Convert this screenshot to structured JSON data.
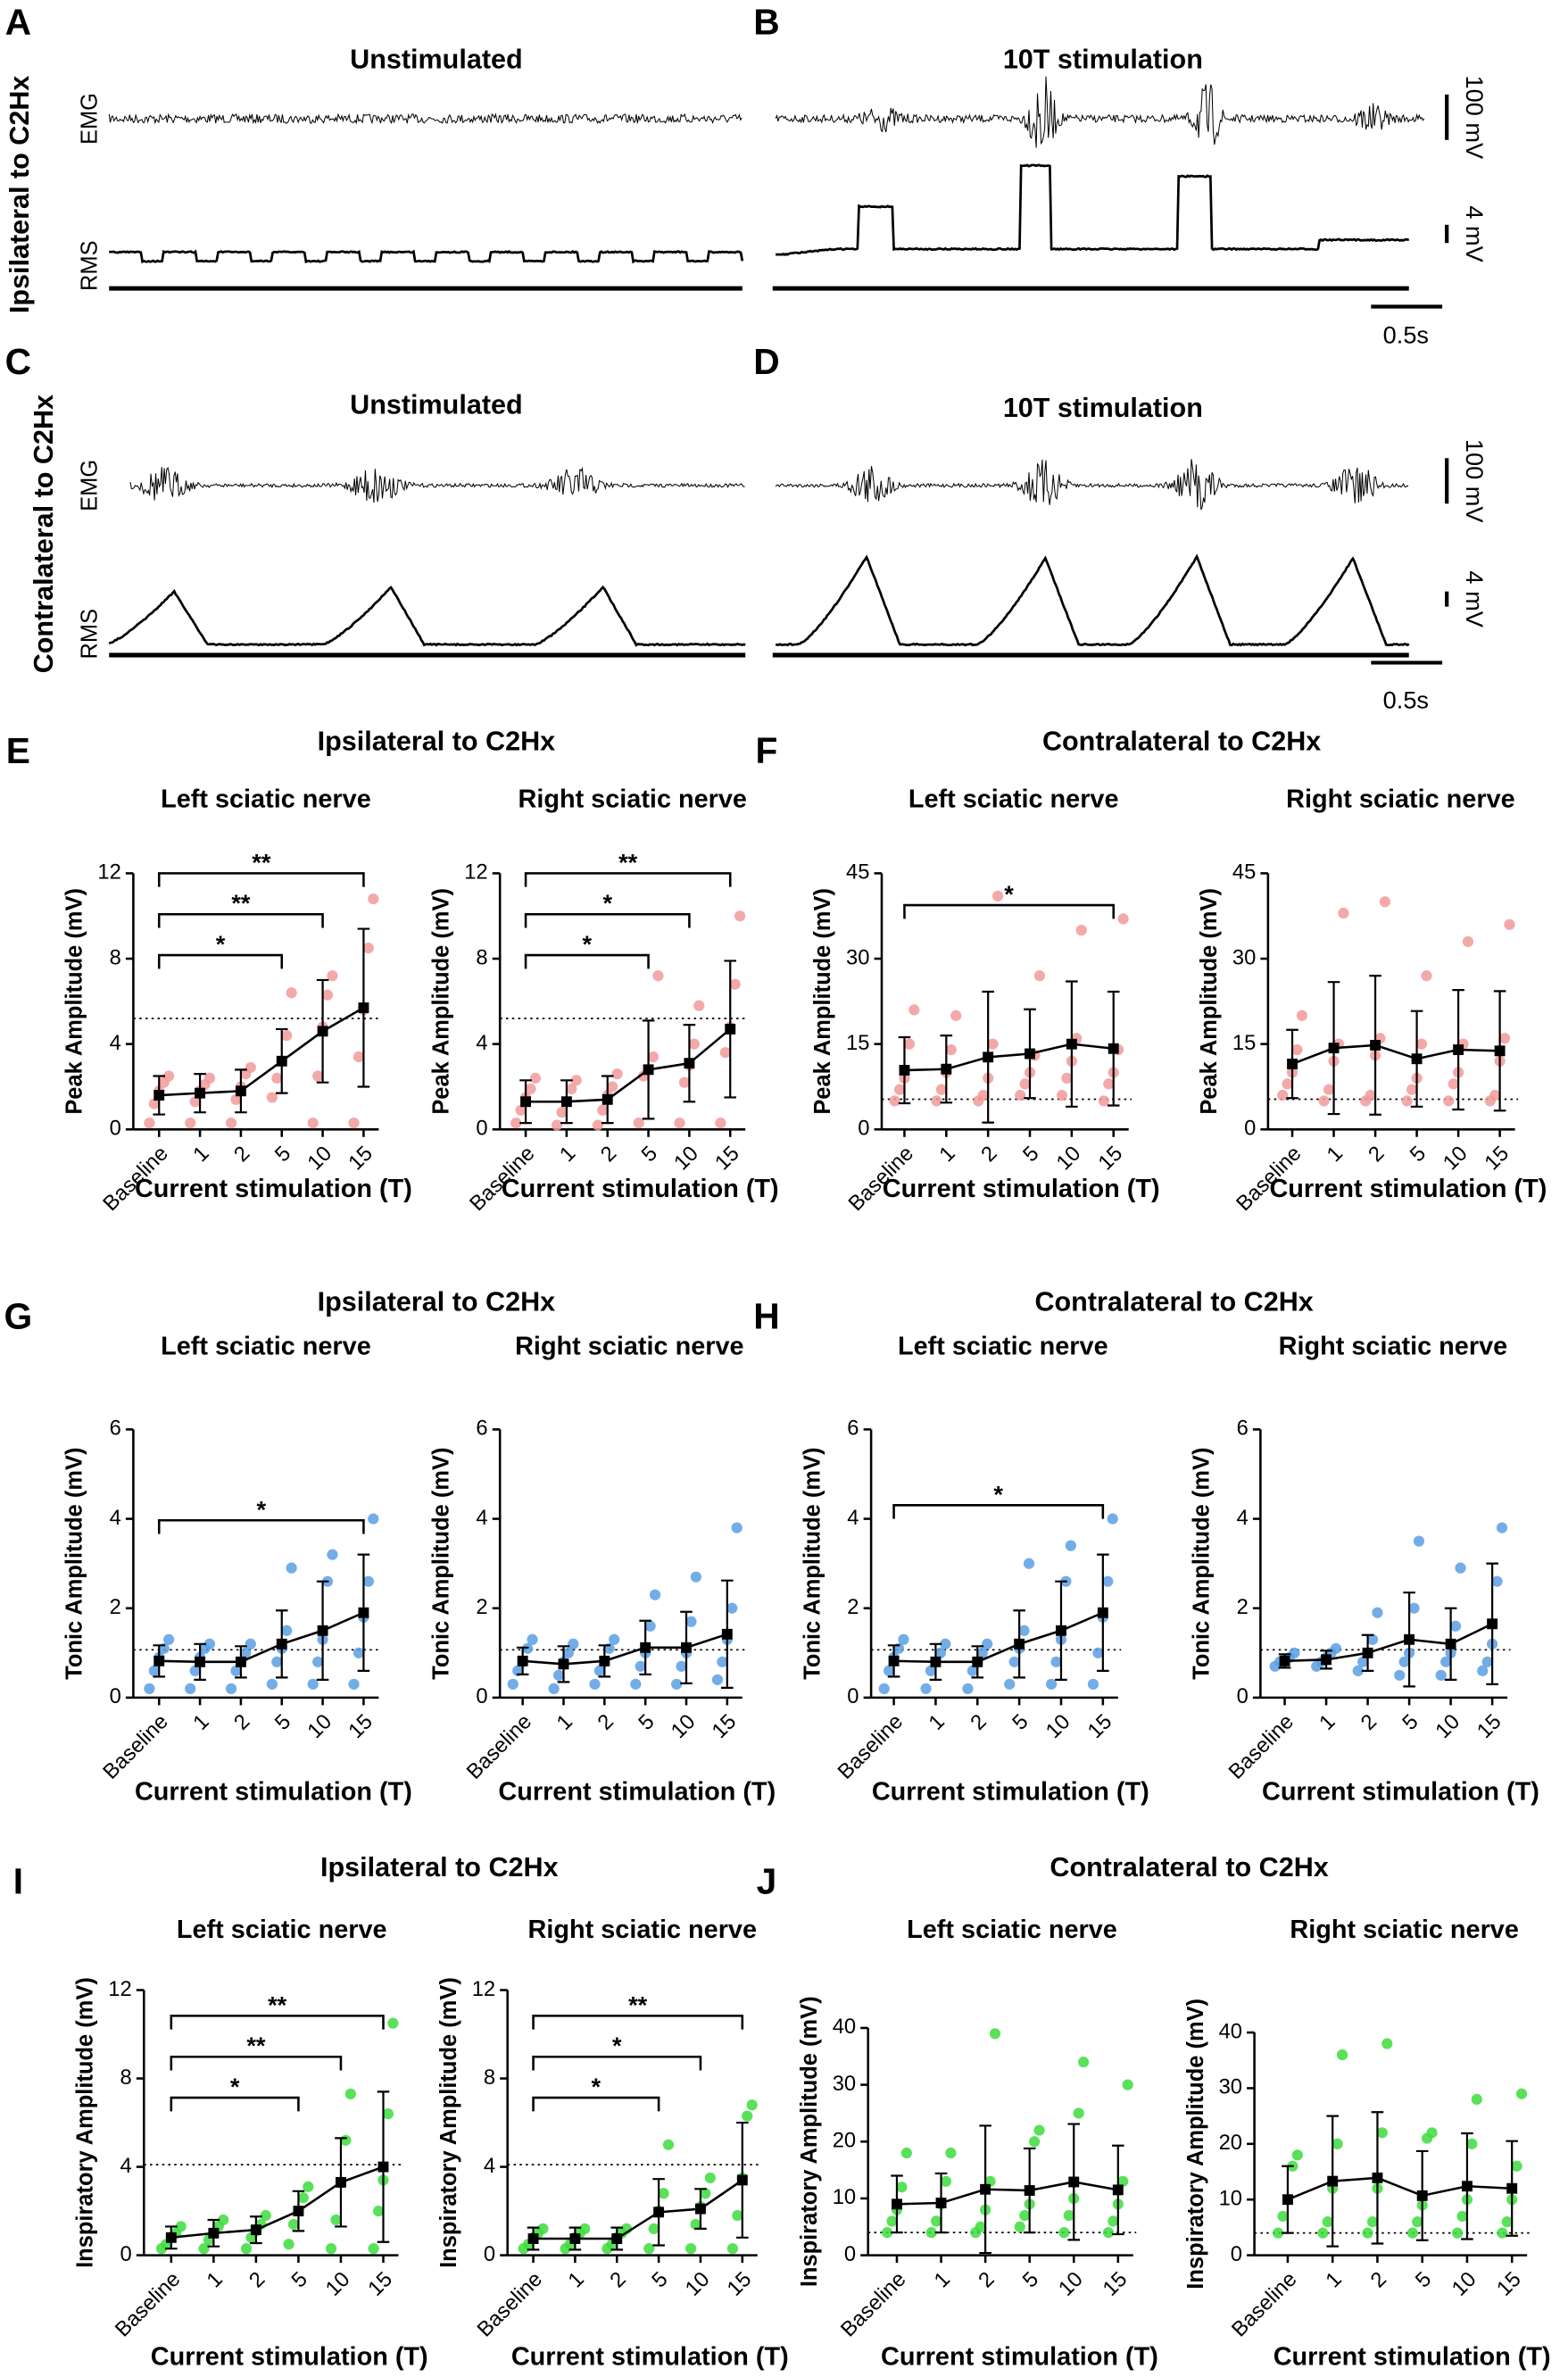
{
  "panel_letters": [
    "A",
    "B",
    "C",
    "D",
    "E",
    "F",
    "G",
    "H",
    "I",
    "J"
  ],
  "traces": {
    "titles": [
      "Unstimulated",
      "10T stimulation",
      "Unstimulated",
      "10T stimulation"
    ],
    "row_labels": [
      "Ipsilateral to C2Hx",
      "Contralateral to C2Hx"
    ],
    "channel_labels": [
      "EMG",
      "RMS"
    ],
    "scale_labels": [
      "100 mV",
      "4 mV",
      "0.5s"
    ]
  },
  "group_titles": [
    "Ipsilateral to C2Hx",
    "Contralateral to C2Hx",
    "Ipsilateral to C2Hx",
    "Contralateral to C2Hx",
    "Ipsilateral to C2Hx",
    "Contralateral to C2Hx"
  ],
  "chart_data": [
    {
      "type": "line",
      "title": "Left sciatic nerve",
      "xlabel": "Current stimulation (T)",
      "ylabel": "Peak Amplitude (mV)",
      "categories": [
        "Baseline",
        "1",
        "2",
        "5",
        "10",
        "15"
      ],
      "values": [
        1.6,
        1.7,
        1.8,
        3.2,
        4.6,
        5.7
      ],
      "errors": [
        0.9,
        0.9,
        1.0,
        1.5,
        2.4,
        3.7
      ],
      "points": [
        [
          0.3,
          1.2,
          1.8,
          2.2,
          2.5
        ],
        [
          0.3,
          1.3,
          1.8,
          2.1,
          2.4
        ],
        [
          0.3,
          1.4,
          2.0,
          2.6,
          2.9
        ],
        [
          1.5,
          2.4,
          3.2,
          4.4,
          6.4
        ],
        [
          0.3,
          2.5,
          4.8,
          6.3,
          7.2
        ],
        [
          0.3,
          3.4,
          5.6,
          8.5,
          10.8
        ]
      ],
      "threshold": 5.2,
      "ylim": [
        0,
        12
      ],
      "yticks": [
        0,
        4,
        8,
        12
      ],
      "brackets": [
        {
          "from": "Baseline",
          "to": "5",
          "label": "*"
        },
        {
          "from": "Baseline",
          "to": "10",
          "label": "**"
        },
        {
          "from": "Baseline",
          "to": "15",
          "label": "**"
        }
      ],
      "color": "#f29a9a"
    },
    {
      "type": "line",
      "title": "Right sciatic nerve",
      "xlabel": "Current stimulation (T)",
      "ylabel": "Peak Amplitude (mV)",
      "categories": [
        "Baseline",
        "1",
        "2",
        "5",
        "10",
        "15"
      ],
      "values": [
        1.3,
        1.3,
        1.4,
        2.8,
        3.1,
        4.7
      ],
      "errors": [
        1.0,
        1.0,
        1.1,
        2.3,
        1.8,
        3.2
      ],
      "points": [
        [
          0.3,
          0.9,
          1.5,
          1.9,
          2.4
        ],
        [
          0.2,
          0.8,
          1.3,
          1.9,
          2.3
        ],
        [
          0.2,
          0.9,
          1.6,
          2.0,
          2.6
        ],
        [
          0.3,
          2.5,
          2.8,
          3.4,
          7.2
        ],
        [
          0.3,
          2.2,
          3.0,
          4.0,
          5.8
        ],
        [
          0.3,
          3.6,
          4.8,
          6.8,
          10.0
        ]
      ],
      "threshold": 5.2,
      "ylim": [
        0,
        12
      ],
      "yticks": [
        0,
        4,
        8,
        12
      ],
      "brackets": [
        {
          "from": "Baseline",
          "to": "5",
          "label": "*"
        },
        {
          "from": "Baseline",
          "to": "10",
          "label": "*"
        },
        {
          "from": "Baseline",
          "to": "15",
          "label": "**"
        }
      ],
      "color": "#f29a9a"
    },
    {
      "type": "line",
      "title": "Left sciatic nerve",
      "xlabel": "Current stimulation (T)",
      "ylabel": "Peak Amplitude (mV)",
      "categories": [
        "Baseline",
        "1",
        "2",
        "5",
        "10",
        "15"
      ],
      "values": [
        10.4,
        10.6,
        12.7,
        13.3,
        15.0,
        14.2
      ],
      "errors": [
        5.8,
        5.9,
        11.5,
        7.8,
        11,
        10
      ],
      "points": [
        [
          5,
          7,
          9,
          15,
          21
        ],
        [
          5,
          7,
          10,
          14,
          20
        ],
        [
          5,
          6,
          9,
          15,
          41
        ],
        [
          6,
          8,
          10,
          13,
          27
        ],
        [
          6,
          9,
          12,
          16,
          35
        ],
        [
          5,
          8,
          10,
          14,
          37
        ]
      ],
      "threshold": 5.3,
      "ylim": [
        0,
        45
      ],
      "yticks": [
        0,
        15,
        30,
        45
      ],
      "brackets": [
        {
          "from": "Baseline",
          "to": "15",
          "label": "*"
        }
      ],
      "color": "#f29a9a"
    },
    {
      "type": "line",
      "title": "Right sciatic nerve",
      "xlabel": "Current stimulation (T)",
      "ylabel": "Peak Amplitude (mV)",
      "categories": [
        "Baseline",
        "1",
        "2",
        "5",
        "10",
        "15"
      ],
      "values": [
        11.5,
        14.3,
        14.8,
        12.4,
        14.0,
        13.8
      ],
      "errors": [
        6,
        11.6,
        12.2,
        8.4,
        10.5,
        10.5
      ],
      "points": [
        [
          6,
          8,
          10,
          14,
          20
        ],
        [
          5,
          7,
          12,
          15,
          38
        ],
        [
          5,
          6,
          13,
          16,
          40
        ],
        [
          5,
          7,
          9,
          15,
          27
        ],
        [
          5,
          8,
          10,
          15,
          33
        ],
        [
          5,
          6,
          12,
          16,
          36
        ]
      ],
      "threshold": 5.3,
      "ylim": [
        0,
        45
      ],
      "yticks": [
        0,
        15,
        30,
        45
      ],
      "brackets": [],
      "color": "#f29a9a"
    },
    {
      "type": "line",
      "title": "Left sciatic nerve",
      "xlabel": "Current stimulation (T)",
      "ylabel": "Tonic Amplitude (mV)",
      "categories": [
        "Baseline",
        "1",
        "2",
        "5",
        "10",
        "15"
      ],
      "values": [
        0.82,
        0.8,
        0.8,
        1.2,
        1.5,
        1.9
      ],
      "errors": [
        0.35,
        0.4,
        0.35,
        0.75,
        1.1,
        1.3
      ],
      "points": [
        [
          0.2,
          0.6,
          0.9,
          1.1,
          1.3
        ],
        [
          0.2,
          0.6,
          0.9,
          1.1,
          1.2
        ],
        [
          0.2,
          0.6,
          0.8,
          1.0,
          1.2
        ],
        [
          0.3,
          0.8,
          1.1,
          1.5,
          2.9
        ],
        [
          0.3,
          0.8,
          1.3,
          2.6,
          3.2
        ],
        [
          0.3,
          1.0,
          1.8,
          2.6,
          4.0
        ]
      ],
      "threshold": 1.07,
      "ylim": [
        0,
        6
      ],
      "yticks": [
        0,
        2,
        4,
        6
      ],
      "brackets": [
        {
          "from": "Baseline",
          "to": "15",
          "label": "*"
        }
      ],
      "color": "#5b9fe3"
    },
    {
      "type": "line",
      "title": "Right sciatic nerve",
      "xlabel": "Current stimulation (T)",
      "ylabel": "Tonic Amplitude (mV)",
      "categories": [
        "Baseline",
        "1",
        "2",
        "5",
        "10",
        "15"
      ],
      "values": [
        0.82,
        0.75,
        0.82,
        1.12,
        1.12,
        1.42
      ],
      "errors": [
        0.3,
        0.4,
        0.35,
        0.6,
        0.8,
        1.2
      ],
      "points": [
        [
          0.3,
          0.6,
          0.8,
          1.1,
          1.3
        ],
        [
          0.2,
          0.5,
          0.8,
          1.0,
          1.2
        ],
        [
          0.3,
          0.6,
          0.8,
          1.1,
          1.3
        ],
        [
          0.3,
          0.7,
          1.0,
          1.6,
          2.3
        ],
        [
          0.3,
          0.7,
          1.0,
          1.7,
          2.7
        ],
        [
          0.4,
          0.8,
          1.3,
          2.0,
          3.8
        ]
      ],
      "threshold": 1.07,
      "ylim": [
        0,
        6
      ],
      "yticks": [
        0,
        2,
        4,
        6
      ],
      "brackets": [],
      "color": "#5b9fe3"
    },
    {
      "type": "line",
      "title": "Left sciatic nerve",
      "xlabel": "Current stimulation (T)",
      "ylabel": "Tonic Amplitude (mV)",
      "categories": [
        "Baseline",
        "1",
        "2",
        "5",
        "10",
        "15"
      ],
      "values": [
        0.82,
        0.8,
        0.8,
        1.2,
        1.5,
        1.9
      ],
      "errors": [
        0.35,
        0.4,
        0.35,
        0.75,
        1.1,
        1.3
      ],
      "points": [
        [
          0.2,
          0.6,
          0.9,
          1.1,
          1.3
        ],
        [
          0.2,
          0.6,
          0.8,
          1.0,
          1.2
        ],
        [
          0.2,
          0.6,
          0.8,
          1.0,
          1.2
        ],
        [
          0.3,
          0.8,
          1.1,
          1.5,
          3.0
        ],
        [
          0.3,
          0.8,
          1.3,
          2.6,
          3.4
        ],
        [
          0.3,
          1.0,
          1.8,
          2.6,
          4.0
        ]
      ],
      "threshold": 1.07,
      "ylim": [
        0,
        6
      ],
      "yticks": [
        0,
        2,
        4,
        6
      ],
      "brackets": [
        {
          "from": "Baseline",
          "to": "15",
          "label": "*"
        }
      ],
      "color": "#5b9fe3"
    },
    {
      "type": "line",
      "title": "Right sciatic nerve",
      "xlabel": "Current stimulation (T)",
      "ylabel": "Tonic Amplitude (mV)",
      "categories": [
        "Baseline",
        "1",
        "2",
        "5",
        "10",
        "15"
      ],
      "values": [
        0.82,
        0.85,
        1.0,
        1.3,
        1.2,
        1.65
      ],
      "errors": [
        0.15,
        0.2,
        0.4,
        1.05,
        0.8,
        1.35
      ],
      "points": [
        [
          0.7,
          0.8,
          0.85,
          0.9,
          1.0
        ],
        [
          0.7,
          0.8,
          0.9,
          1.0,
          1.1
        ],
        [
          0.6,
          0.8,
          1.0,
          1.3,
          1.9
        ],
        [
          0.5,
          0.8,
          1.0,
          2.0,
          3.5
        ],
        [
          0.5,
          0.8,
          1.0,
          1.6,
          2.9
        ],
        [
          0.6,
          0.8,
          1.2,
          2.6,
          3.8
        ]
      ],
      "threshold": 1.07,
      "ylim": [
        0,
        6
      ],
      "yticks": [
        0,
        2,
        4,
        6
      ],
      "brackets": [],
      "color": "#5b9fe3"
    },
    {
      "type": "line",
      "title": "Left sciatic nerve",
      "xlabel": "Current stimulation (T)",
      "ylabel": "Inspiratory Amplitude (mV)",
      "categories": [
        "Baseline",
        "1",
        "2",
        "5",
        "10",
        "15"
      ],
      "values": [
        0.8,
        1.0,
        1.15,
        2.0,
        3.3,
        4.0
      ],
      "errors": [
        0.5,
        0.6,
        0.6,
        0.9,
        2.0,
        3.4
      ],
      "points": [
        [
          0.3,
          0.5,
          0.8,
          1.0,
          1.3
        ],
        [
          0.3,
          0.7,
          1.0,
          1.3,
          1.6
        ],
        [
          0.3,
          0.8,
          1.1,
          1.4,
          1.8
        ],
        [
          0.5,
          1.4,
          2.0,
          2.6,
          3.1
        ],
        [
          0.3,
          1.6,
          3.3,
          5.2,
          7.3
        ],
        [
          0.3,
          2.0,
          3.4,
          6.4,
          10.5
        ]
      ],
      "threshold": 4.1,
      "ylim": [
        0,
        12
      ],
      "yticks": [
        0,
        4,
        8,
        12
      ],
      "brackets": [
        {
          "from": "Baseline",
          "to": "5",
          "label": "*"
        },
        {
          "from": "Baseline",
          "to": "10",
          "label": "**"
        },
        {
          "from": "Baseline",
          "to": "15",
          "label": "**"
        }
      ],
      "color": "#3ddc3d"
    },
    {
      "type": "line",
      "title": "Right sciatic nerve",
      "xlabel": "Current stimulation (T)",
      "ylabel": "Inspiratory Amplitude (mV)",
      "categories": [
        "Baseline",
        "1",
        "2",
        "5",
        "10",
        "15"
      ],
      "values": [
        0.75,
        0.75,
        0.75,
        1.95,
        2.1,
        3.4
      ],
      "errors": [
        0.5,
        0.5,
        0.5,
        1.5,
        0.9,
        2.6
      ],
      "points": [
        [
          0.3,
          0.5,
          0.8,
          1.0,
          1.2
        ],
        [
          0.3,
          0.5,
          0.8,
          1.0,
          1.2
        ],
        [
          0.3,
          0.5,
          0.8,
          1.0,
          1.2
        ],
        [
          0.3,
          1.2,
          2.0,
          2.8,
          5.0
        ],
        [
          0.3,
          1.4,
          2.2,
          2.8,
          3.5
        ],
        [
          0.3,
          1.8,
          3.5,
          6.3,
          6.8
        ]
      ],
      "threshold": 4.1,
      "ylim": [
        0,
        12
      ],
      "yticks": [
        0,
        4,
        8,
        12
      ],
      "brackets": [
        {
          "from": "Baseline",
          "to": "5",
          "label": "*"
        },
        {
          "from": "Baseline",
          "to": "10",
          "label": "*"
        },
        {
          "from": "Baseline",
          "to": "15",
          "label": "**"
        }
      ],
      "color": "#3ddc3d"
    },
    {
      "type": "line",
      "title": "Left sciatic nerve",
      "xlabel": "Current stimulation (T)",
      "ylabel": "Inspiratory Amplitude (mV)",
      "categories": [
        "Baseline",
        "1",
        "2",
        "5",
        "10",
        "15"
      ],
      "values": [
        9.0,
        9.2,
        11.6,
        11.4,
        12.9,
        11.5
      ],
      "errors": [
        5,
        5.2,
        11.2,
        7.4,
        10.2,
        7.8
      ],
      "points": [
        [
          4,
          6,
          8,
          12,
          18
        ],
        [
          4,
          6,
          9,
          13,
          18
        ],
        [
          4,
          5,
          8,
          13,
          39
        ],
        [
          5,
          7,
          9,
          20,
          22
        ],
        [
          4,
          7,
          10,
          25,
          34
        ],
        [
          4,
          6,
          9,
          13,
          30
        ]
      ],
      "threshold": 4.0,
      "ylim": [
        0,
        40
      ],
      "yticks": [
        0,
        10,
        20,
        30,
        40
      ],
      "brackets": [],
      "color": "#3ddc3d"
    },
    {
      "type": "line",
      "title": "Right sciatic nerve",
      "xlabel": "Current stimulation (T)",
      "ylabel": "Inspiratory Amplitude (mV)",
      "categories": [
        "Baseline",
        "1",
        "2",
        "5",
        "10",
        "15"
      ],
      "values": [
        10.0,
        13.3,
        13.9,
        10.7,
        12.4,
        12.0
      ],
      "errors": [
        6,
        11.7,
        11.8,
        8,
        9.5,
        8.5
      ],
      "points": [
        [
          4,
          7,
          10,
          16,
          18
        ],
        [
          4,
          6,
          12,
          20,
          36
        ],
        [
          4,
          6,
          12,
          22,
          38
        ],
        [
          4,
          6,
          9,
          21,
          22
        ],
        [
          4,
          7,
          10,
          20,
          28
        ],
        [
          4,
          6,
          10,
          16,
          29
        ]
      ],
      "threshold": 4.0,
      "ylim": [
        0,
        40
      ],
      "yticks": [
        0,
        10,
        20,
        30,
        40
      ],
      "brackets": [],
      "color": "#3ddc3d"
    }
  ]
}
